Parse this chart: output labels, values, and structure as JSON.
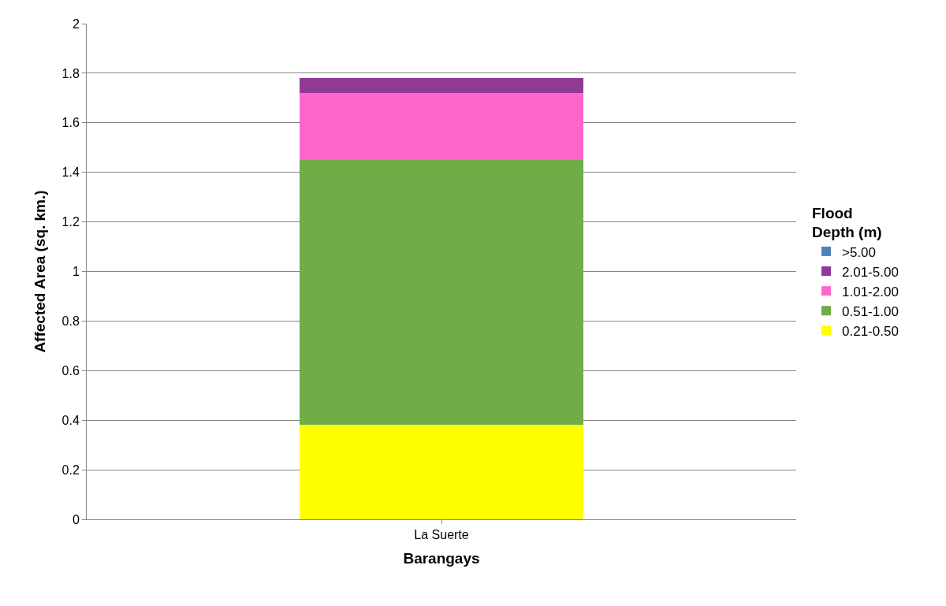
{
  "chart_data": {
    "type": "bar",
    "stacked": true,
    "xlabel": "Barangays",
    "ylabel": "Affected Area (sq. km.)",
    "legend_title": "Flood Depth (m)",
    "legend": "right",
    "categories": [
      "La Suerte"
    ],
    "series": [
      {
        "name": "0.21-0.50",
        "color": "#ffff00",
        "values": [
          0.38
        ]
      },
      {
        "name": "0.51-1.00",
        "color": "#70ad47",
        "values": [
          1.07
        ]
      },
      {
        "name": "1.01-2.00",
        "color": "#ff66cc",
        "values": [
          0.27
        ]
      },
      {
        "name": "2.01-5.00",
        "color": "#8e3a96",
        "values": [
          0.06
        ]
      },
      {
        "name": ">5.00",
        "color": "#4f81bd",
        "values": [
          0
        ]
      }
    ],
    "ylim": [
      0,
      2
    ],
    "yticks": [
      0,
      0.2,
      0.4,
      0.6,
      0.8,
      1,
      1.2,
      1.4,
      1.6,
      1.8,
      2
    ],
    "grid": "y"
  }
}
